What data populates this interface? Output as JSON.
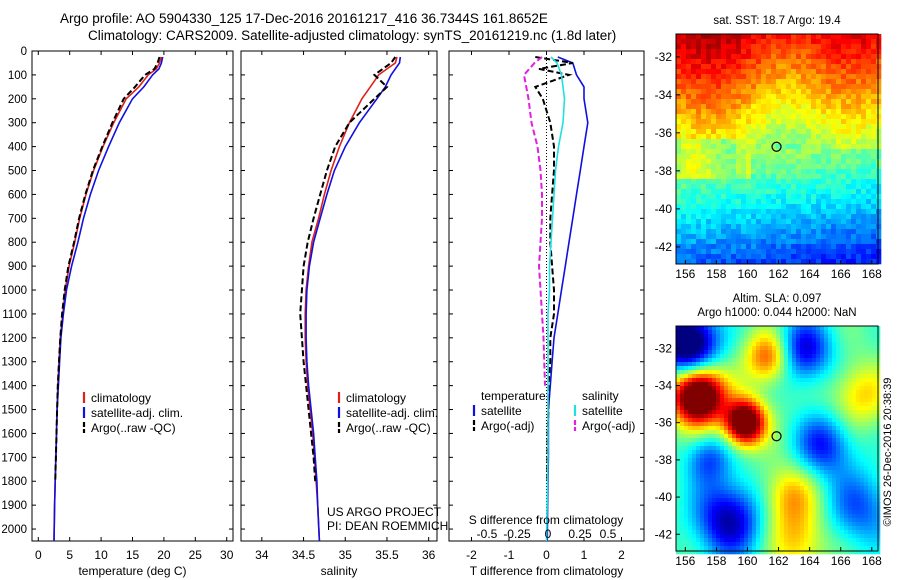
{
  "header": {
    "line1": "Argo profile: AO 5904330_125 17-Dec-2016 20161217_416 36.7344S 161.8652E",
    "line2": "Climatology: CARS2009. Satellite-adjusted climatology: synTS_20161219.nc (1.8d later)"
  },
  "stamp": "©IMOS 26-Dec-2016 20:38:39",
  "colors": {
    "climatology": "#e0201b",
    "satellite": "#1010e0",
    "argo": "#000000",
    "sat_salinity": "#20e0e0",
    "argo_salinity": "#e020e0"
  },
  "depth_axis": {
    "ticks": [
      0,
      100,
      200,
      300,
      400,
      500,
      600,
      700,
      800,
      900,
      1000,
      1100,
      1200,
      1300,
      1400,
      1500,
      1600,
      1700,
      1800,
      1900,
      2000
    ],
    "range": [
      0,
      2050
    ],
    "inverted": true
  },
  "chart_data": [
    {
      "id": "temperature",
      "type": "line",
      "xlabel": "temperature (deg C)",
      "xlim": [
        -1,
        31
      ],
      "xticks": [
        0,
        5,
        10,
        15,
        20,
        25,
        30
      ],
      "legend": {
        "position": "lower-middle",
        "items": [
          "climatology",
          "satellite-adj. clim.",
          "Argo(..raw -QC)"
        ]
      },
      "series": [
        {
          "name": "climatology",
          "color_key": "climatology",
          "style": "solid",
          "x": [
            19.6,
            19.3,
            18.8,
            17.5,
            16.0,
            14.0,
            12.0,
            10.3,
            8.8,
            7.6,
            6.6,
            5.8,
            4.9,
            4.3,
            3.9,
            3.5,
            3.3,
            3.1,
            3.0,
            2.9,
            2.8,
            2.7,
            2.6,
            2.5
          ],
          "y": [
            25,
            50,
            75,
            100,
            150,
            200,
            300,
            400,
            500,
            600,
            700,
            800,
            900,
            1000,
            1100,
            1200,
            1300,
            1400,
            1500,
            1600,
            1700,
            1800,
            1900,
            2050
          ]
        },
        {
          "name": "satellite-adj. clim.",
          "color_key": "satellite",
          "style": "solid",
          "x": [
            19.8,
            19.6,
            19.2,
            18.2,
            16.8,
            15.0,
            12.9,
            11.2,
            9.6,
            8.3,
            7.2,
            6.3,
            5.3,
            4.5,
            4.0,
            3.6,
            3.4,
            3.2,
            3.0,
            2.9,
            2.8,
            2.7,
            2.6,
            2.5
          ],
          "y": [
            25,
            50,
            75,
            100,
            150,
            200,
            300,
            400,
            500,
            600,
            700,
            800,
            900,
            1000,
            1100,
            1200,
            1300,
            1400,
            1500,
            1600,
            1700,
            1800,
            1900,
            2050
          ]
        },
        {
          "name": "Argo(..raw -QC)",
          "color_key": "argo",
          "style": "dashed",
          "x": [
            19.3,
            19.0,
            18.5,
            17.0,
            15.4,
            13.6,
            11.8,
            10.2,
            8.7,
            7.5,
            6.5,
            5.7,
            4.8,
            4.2,
            3.8,
            3.5,
            3.3,
            3.1,
            3.0,
            2.9,
            2.8,
            2.7
          ],
          "y": [
            25,
            50,
            75,
            100,
            150,
            200,
            300,
            400,
            500,
            600,
            700,
            800,
            900,
            1000,
            1100,
            1200,
            1300,
            1400,
            1500,
            1600,
            1700,
            1800
          ]
        }
      ]
    },
    {
      "id": "salinity",
      "type": "line",
      "xlabel": "salinity",
      "xlim": [
        33.75,
        36.1
      ],
      "xticks": [
        34,
        34.5,
        35,
        35.5,
        36
      ],
      "legend": {
        "position": "lower-middle",
        "items": [
          "climatology",
          "satellite-adj. clim.",
          "Argo(..raw -QC)"
        ]
      },
      "annotation": [
        "US ARGO PROJECT",
        "PI: DEAN ROEMMICH"
      ],
      "series": [
        {
          "name": "climatology",
          "color_key": "climatology",
          "style": "solid",
          "x": [
            35.62,
            35.6,
            35.5,
            35.4,
            35.3,
            35.2,
            35.05,
            34.93,
            34.83,
            34.75,
            34.68,
            34.6,
            34.56,
            34.53,
            34.52,
            34.52,
            34.53,
            34.55,
            34.58,
            34.61,
            34.63,
            34.65,
            34.67,
            34.69
          ],
          "y": [
            25,
            50,
            75,
            100,
            150,
            200,
            300,
            400,
            500,
            600,
            700,
            800,
            900,
            1000,
            1100,
            1200,
            1300,
            1400,
            1500,
            1600,
            1700,
            1800,
            1900,
            2050
          ]
        },
        {
          "name": "satellite-adj. clim.",
          "color_key": "satellite",
          "style": "solid",
          "x": [
            35.66,
            35.65,
            35.6,
            35.55,
            35.48,
            35.38,
            35.17,
            35.0,
            34.87,
            34.78,
            34.7,
            34.62,
            34.57,
            34.54,
            34.53,
            34.53,
            34.54,
            34.56,
            34.59,
            34.62,
            34.64,
            34.66,
            34.67,
            34.69
          ],
          "y": [
            25,
            50,
            75,
            100,
            150,
            200,
            300,
            400,
            500,
            600,
            700,
            800,
            900,
            1000,
            1100,
            1200,
            1300,
            1400,
            1500,
            1600,
            1700,
            1800,
            1900,
            2050
          ]
        },
        {
          "name": "Argo(..raw -QC)",
          "color_key": "argo",
          "style": "dashed",
          "x": [
            35.6,
            35.55,
            35.45,
            35.35,
            35.5,
            35.35,
            35.05,
            34.88,
            34.78,
            34.7,
            34.62,
            34.55,
            34.5,
            34.48,
            34.46,
            34.48,
            34.5,
            34.53,
            34.56,
            34.59,
            34.62,
            34.64
          ],
          "y": [
            25,
            50,
            75,
            100,
            150,
            200,
            300,
            400,
            500,
            600,
            700,
            800,
            900,
            1000,
            1100,
            1200,
            1300,
            1400,
            1500,
            1600,
            1700,
            1800
          ]
        }
      ]
    },
    {
      "id": "difference",
      "type": "line",
      "xlabel": "T difference from climatology",
      "xlim": [
        -2.6,
        2.6
      ],
      "xticks": [
        -2,
        -1,
        0,
        1,
        2
      ],
      "s_axis_label": "S difference from climatology",
      "s_ticks": [
        "-0.5",
        "-0.25",
        "0",
        "0.25",
        "0.5"
      ],
      "legend": {
        "position": "lower-middle",
        "temperature_title": "temperature",
        "salinity_title": "salinity",
        "temperature_items": [
          "satellite",
          "Argo(-adj)"
        ],
        "salinity_items": [
          "satellite",
          "Argo(-adj)"
        ]
      },
      "series": [
        {
          "name": "T satellite",
          "color_key": "satellite",
          "style": "solid",
          "x": [
            0.3,
            0.7,
            0.8,
            1.0,
            1.0,
            1.1,
            1.0,
            0.9,
            0.8,
            0.7,
            0.6,
            0.5,
            0.4,
            0.3,
            0.2,
            0.15,
            0.1,
            0.05,
            0.05,
            0.05,
            0.03,
            0.02
          ],
          "y": [
            25,
            50,
            100,
            150,
            200,
            300,
            400,
            500,
            600,
            700,
            800,
            900,
            1000,
            1100,
            1200,
            1300,
            1400,
            1500,
            1600,
            1700,
            1900,
            2050
          ]
        },
        {
          "name": "T Argo(-adj)",
          "color_key": "argo",
          "style": "dashed",
          "x": [
            -0.3,
            0.7,
            -0.2,
            0.6,
            -0.3,
            -0.1,
            0.1,
            0.2,
            0.2,
            0.15,
            0.1,
            0.1,
            0.15,
            0.2,
            0.2,
            0.1,
            0.1,
            0.05,
            0.05,
            0.03,
            0.02
          ],
          "y": [
            25,
            50,
            75,
            100,
            150,
            200,
            300,
            400,
            500,
            600,
            700,
            800,
            900,
            1000,
            1100,
            1200,
            1300,
            1400,
            1500,
            1600,
            1800
          ]
        },
        {
          "name": "S satellite",
          "color_key": "sat_salinity",
          "style": "solid",
          "x": [
            0.03,
            0.07,
            0.1,
            0.12,
            0.11,
            0.08,
            0.06,
            0.05,
            0.04,
            0.03,
            0.02,
            0.02,
            0.01,
            0.01,
            0.01,
            0.01,
            0.0
          ],
          "y": [
            25,
            50,
            100,
            200,
            300,
            400,
            500,
            600,
            700,
            800,
            900,
            1000,
            1100,
            1300,
            1500,
            1700,
            2050
          ]
        },
        {
          "name": "S Argo(-adj)",
          "color_key": "argo_salinity",
          "style": "dashed",
          "x": [
            -0.03,
            -0.08,
            -0.15,
            -0.12,
            -0.1,
            -0.06,
            -0.04,
            -0.03,
            -0.03,
            -0.04,
            -0.05,
            -0.04,
            -0.03,
            -0.02,
            -0.01
          ],
          "y": [
            25,
            50,
            100,
            200,
            300,
            400,
            500,
            600,
            700,
            800,
            900,
            1000,
            1100,
            1200,
            1400
          ]
        }
      ]
    },
    {
      "id": "sst_map",
      "type": "heatmap",
      "title": "sat. SST: 18.7 Argo: 19.4",
      "xticks": [
        156,
        158,
        160,
        162,
        164,
        166,
        168
      ],
      "yticks": [
        -32,
        -34,
        -36,
        -38,
        -40,
        -42
      ],
      "xlim": [
        155.4,
        168.4
      ],
      "ylim": [
        -42.9,
        -30.8
      ],
      "marker": {
        "lon": 161.87,
        "lat": -36.73
      }
    },
    {
      "id": "sla_map",
      "type": "heatmap",
      "title": [
        "Altim. SLA: 0.097",
        "Argo h1000: 0.044 h2000: NaN"
      ],
      "xticks": [
        156,
        158,
        160,
        162,
        164,
        166,
        168
      ],
      "yticks": [
        -32,
        -34,
        -36,
        -38,
        -40,
        -42
      ],
      "xlim": [
        155.4,
        168.4
      ],
      "ylim": [
        -42.9,
        -30.8
      ],
      "marker": {
        "lon": 161.87,
        "lat": -36.73
      }
    }
  ]
}
